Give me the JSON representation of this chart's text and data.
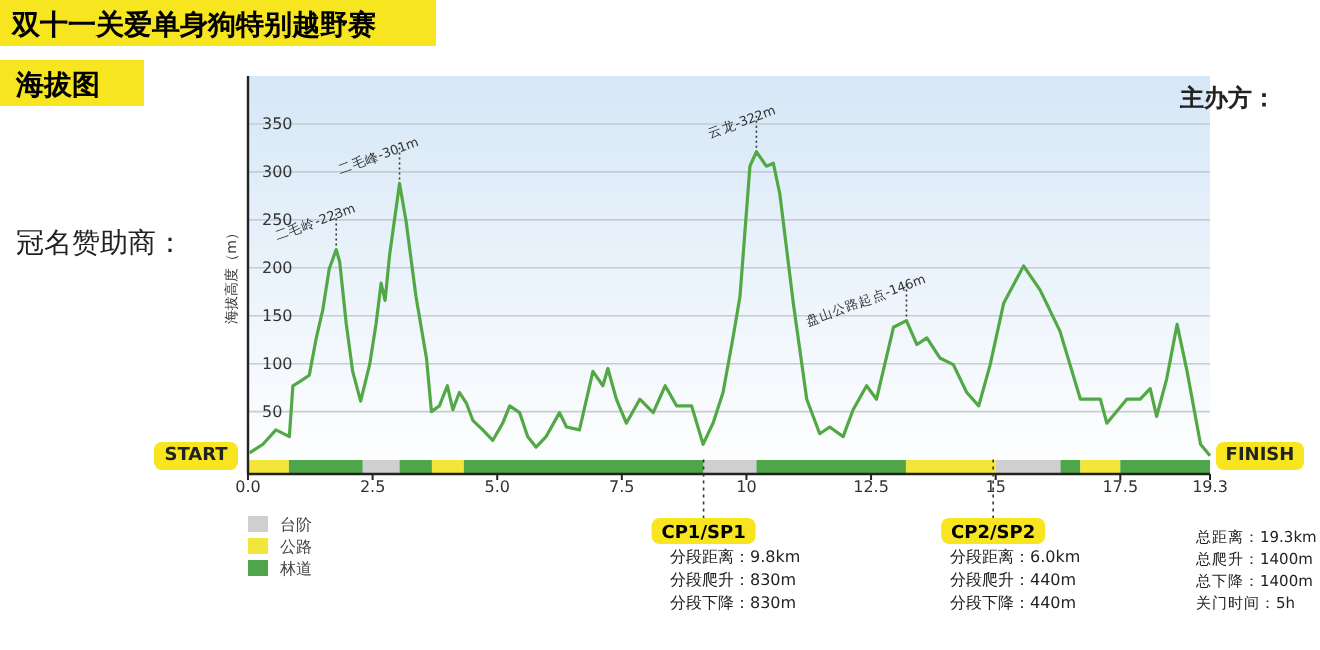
{
  "chart_data": {
    "type": "line",
    "title": "双十一关爱单身狗特别越野赛",
    "subtitle": "海拔图",
    "ylabel": "海拔高度（m）",
    "xlim": [
      0,
      19.3
    ],
    "ylim": [
      -15,
      400
    ],
    "xticks": [
      {
        "value": 0,
        "label": "0.0"
      },
      2.5,
      {
        "value": 5,
        "label": "5.0"
      },
      7.5,
      10,
      12.5,
      15,
      17.5,
      19.3
    ],
    "yticks": [
      50,
      100,
      150,
      200,
      250,
      300,
      350
    ],
    "grid": "y",
    "legend": "bottom left",
    "series": [
      {
        "color": "#52a844",
        "x": [
          0.03,
          0.3,
          0.56,
          0.83,
          0.9,
          1.03,
          1.23,
          1.37,
          1.5,
          1.63,
          1.77,
          1.84,
          1.97,
          2.1,
          2.26,
          2.44,
          2.57,
          2.67,
          2.75,
          2.84,
          3.04,
          3.17,
          3.37,
          3.58,
          3.68,
          3.84,
          4.0,
          4.11,
          4.24,
          4.38,
          4.51,
          4.71,
          4.91,
          5.11,
          5.25,
          5.45,
          5.61,
          5.78,
          5.98,
          6.25,
          6.39,
          6.65,
          6.92,
          7.12,
          7.22,
          7.39,
          7.59,
          7.86,
          8.13,
          8.37,
          8.6,
          8.9,
          9.13,
          9.33,
          9.53,
          9.73,
          9.87,
          10.07,
          10.2,
          10.4,
          10.54,
          10.67,
          10.94,
          11.21,
          11.47,
          11.67,
          11.94,
          12.14,
          12.41,
          12.61,
          12.95,
          13.21,
          13.42,
          13.62,
          13.88,
          14.15,
          14.42,
          14.66,
          14.89,
          15.16,
          15.56,
          15.89,
          16.29,
          16.7,
          17.1,
          17.23,
          17.63,
          17.9,
          18.1,
          18.23,
          18.43,
          18.64,
          18.84,
          19.11,
          19.3
        ],
        "values": [
          7,
          16,
          31,
          24,
          77,
          81,
          88,
          127,
          156,
          199,
          219,
          206,
          142,
          92,
          61,
          99,
          142,
          184,
          166,
          213,
          288,
          249,
          170,
          106,
          50,
          56,
          77,
          52,
          70,
          59,
          41,
          31,
          20,
          38,
          56,
          49,
          24,
          13,
          24,
          49,
          34,
          31,
          92,
          77,
          95,
          63,
          38,
          63,
          49,
          77,
          56,
          56,
          16,
          38,
          70,
          127,
          170,
          306,
          321,
          306,
          309,
          277,
          163,
          63,
          27,
          34,
          24,
          52,
          77,
          63,
          138,
          145,
          120,
          127,
          106,
          99,
          70,
          56,
          99,
          163,
          202,
          177,
          134,
          63,
          63,
          38,
          63,
          63,
          74,
          45,
          84,
          141,
          92,
          16,
          4
        ]
      }
    ],
    "bands": [
      {
        "axis": "x",
        "from": 2.3,
        "to": 3.04,
        "label": "台阶",
        "color": "#cfcfcf"
      },
      {
        "axis": "x",
        "from": 0,
        "to": 0.82,
        "label": "公路",
        "color": "#f2e53c"
      },
      {
        "axis": "x",
        "from": 0.82,
        "to": 2.3,
        "label": "林道",
        "color": "#4fa64a"
      },
      {
        "axis": "x",
        "from": 3.04,
        "to": 3.69,
        "color": "#4fa64a"
      },
      {
        "axis": "x",
        "from": 3.69,
        "to": 4.33,
        "color": "#f2e53c"
      },
      {
        "axis": "x",
        "from": 4.33,
        "to": 9.14,
        "color": "#4fa64a"
      },
      {
        "axis": "x",
        "from": 9.14,
        "to": 10.2,
        "color": "#cfcfcf"
      },
      {
        "axis": "x",
        "from": 10.2,
        "to": 13.2,
        "color": "#4fa64a"
      },
      {
        "axis": "x",
        "from": 13.2,
        "to": 15.0,
        "color": "#f2e53c"
      },
      {
        "axis": "x",
        "from": 15.0,
        "to": 16.3,
        "color": "#cfcfcf"
      },
      {
        "axis": "x",
        "from": 16.3,
        "to": 16.7,
        "color": "#4fa64a"
      },
      {
        "axis": "x",
        "from": 16.7,
        "to": 17.5,
        "color": "#f2e53c"
      },
      {
        "axis": "x",
        "from": 17.5,
        "to": 19.3,
        "color": "#4fa64a"
      }
    ],
    "ref_lines": [
      {
        "axis": "x",
        "value": 9.14,
        "label": "CP1/SP1",
        "line_style": "dotted"
      },
      {
        "axis": "x",
        "value": 14.95,
        "label": "CP2/SP2",
        "line_style": "dotted"
      }
    ],
    "annotations": [
      {
        "text": "二毛岭-223m",
        "x": 1.77,
        "y": 219
      },
      {
        "text": "二毛峰-301m",
        "x": 3.04,
        "y": 288
      },
      {
        "text": "云龙-322m",
        "x": 10.2,
        "y": 321
      },
      {
        "text": "盘山公路起点-146m",
        "x": 13.21,
        "y": 145
      },
      "主办方：",
      "冠名赞助商：",
      "START",
      "FINISH",
      "分段距离：9.8km\n分段爬升：830m\n分段下降：830m",
      "分段距离：6.0km\n分段爬升：440m\n分段下降：440m",
      "总距离：19.3km\n总爬升：1400m\n总下降：1400m\n关门时间：5h"
    ]
  }
}
